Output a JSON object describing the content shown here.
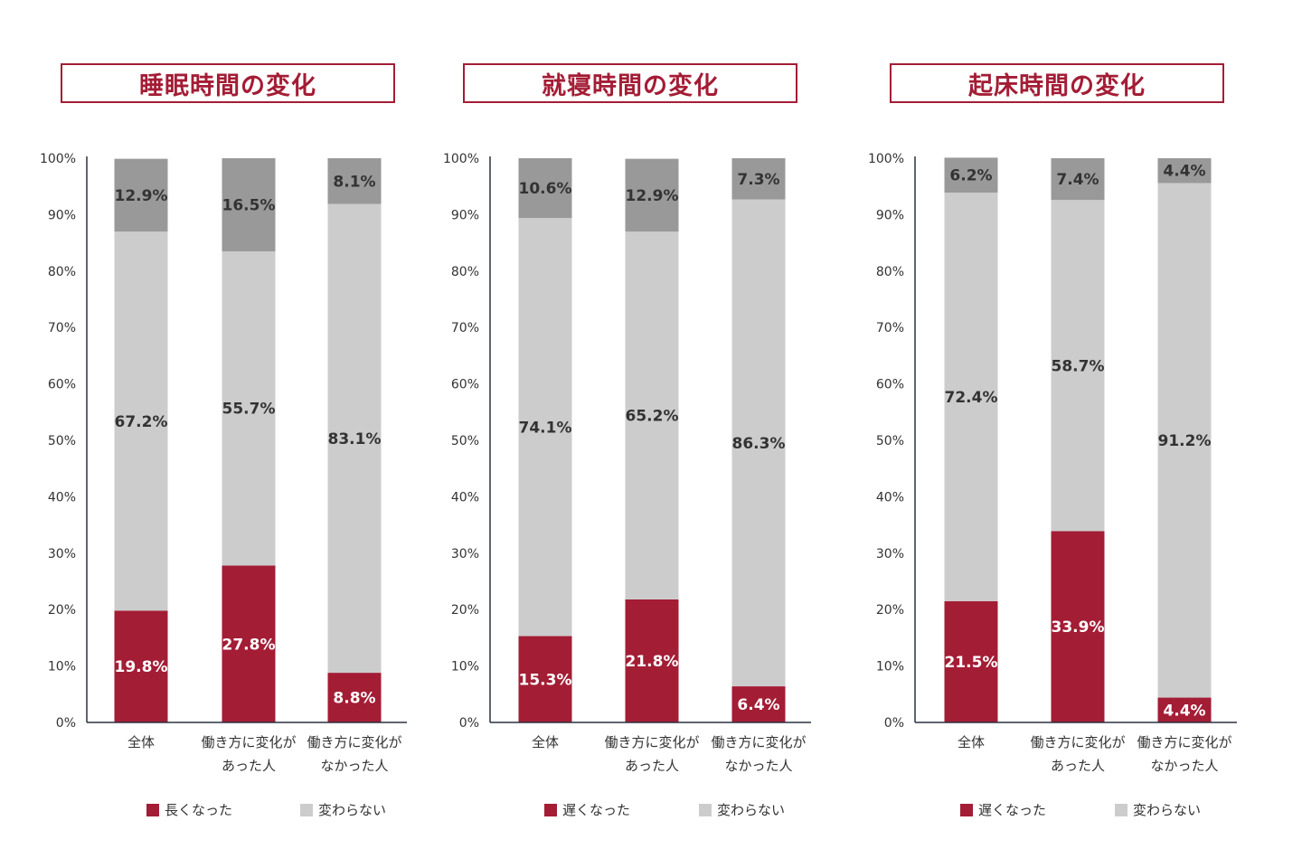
{
  "colors": {
    "accent": "#a31d35",
    "light": "#cccccc",
    "dark": "#999999",
    "axis": "#2b3142"
  },
  "y_ticks": [
    "0%",
    "10%",
    "20%",
    "30%",
    "40%",
    "50%",
    "60%",
    "70%",
    "80%",
    "90%",
    "100%"
  ],
  "chart_data": [
    {
      "type": "bar",
      "stacked": true,
      "title": "睡眠時間の変化",
      "categories": [
        [
          "全体"
        ],
        [
          "働き方に変化が",
          "あった人"
        ],
        [
          "働き方に変化が",
          "なかった人"
        ]
      ],
      "ylim": [
        0,
        100
      ],
      "series": [
        {
          "name": "長くなった",
          "color": "#a31d35",
          "values": [
            19.8,
            27.8,
            8.8
          ],
          "labels": [
            "19.8%",
            "27.8%",
            "8.8%"
          ]
        },
        {
          "name": "変わらない",
          "color": "#cccccc",
          "values": [
            67.2,
            55.7,
            83.1
          ],
          "labels": [
            "67.2%",
            "55.7%",
            "83.1%"
          ]
        },
        {
          "color": "#999999",
          "values": [
            12.9,
            16.5,
            8.1
          ],
          "labels": [
            "12.9%",
            "16.5%",
            "8.1%"
          ]
        }
      ],
      "legend": [
        "長くなった",
        "変わらない"
      ]
    },
    {
      "type": "bar",
      "stacked": true,
      "title": "就寝時間の変化",
      "categories": [
        [
          "全体"
        ],
        [
          "働き方に変化が",
          "あった人"
        ],
        [
          "働き方に変化が",
          "なかった人"
        ]
      ],
      "ylim": [
        0,
        100
      ],
      "series": [
        {
          "name": "遅くなった",
          "color": "#a31d35",
          "values": [
            15.3,
            21.8,
            6.4
          ],
          "labels": [
            "15.3%",
            "21.8%",
            "6.4%"
          ]
        },
        {
          "name": "変わらない",
          "color": "#cccccc",
          "values": [
            74.1,
            65.2,
            86.3
          ],
          "labels": [
            "74.1%",
            "65.2%",
            "86.3%"
          ]
        },
        {
          "color": "#999999",
          "values": [
            10.6,
            12.9,
            7.3
          ],
          "labels": [
            "10.6%",
            "12.9%",
            "7.3%"
          ]
        }
      ],
      "legend": [
        "遅くなった",
        "変わらない"
      ]
    },
    {
      "type": "bar",
      "stacked": true,
      "title": "起床時間の変化",
      "categories": [
        [
          "全体"
        ],
        [
          "働き方に変化が",
          "あった人"
        ],
        [
          "働き方に変化が",
          "なかった人"
        ]
      ],
      "ylim": [
        0,
        100
      ],
      "series": [
        {
          "name": "遅くなった",
          "color": "#a31d35",
          "values": [
            21.5,
            33.9,
            4.4
          ],
          "labels": [
            "21.5%",
            "33.9%",
            "4.4%"
          ]
        },
        {
          "name": "変わらない",
          "color": "#cccccc",
          "values": [
            72.4,
            58.7,
            91.2
          ],
          "labels": [
            "72.4%",
            "58.7%",
            "91.2%"
          ]
        },
        {
          "color": "#999999",
          "values": [
            6.2,
            7.4,
            4.4
          ],
          "labels": [
            "6.2%",
            "7.4%",
            "4.4%"
          ]
        }
      ],
      "legend": [
        "遅くなった",
        "変わらない"
      ]
    }
  ]
}
